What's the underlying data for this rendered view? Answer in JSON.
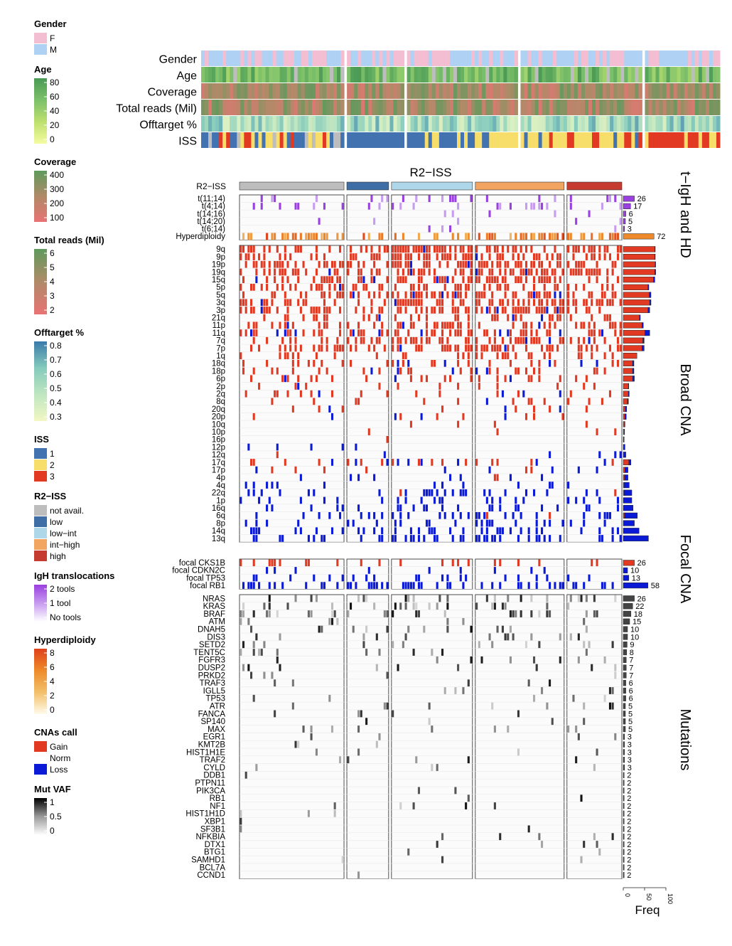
{
  "legends": [
    {
      "title": "Gender",
      "kind": "discrete",
      "items": [
        {
          "label": "F",
          "color": "#f4bed2"
        },
        {
          "label": "M",
          "color": "#aed1f4"
        }
      ]
    },
    {
      "title": "Age",
      "kind": "gradient",
      "colors": [
        "#f4fca0",
        "#bde06e",
        "#7cc06a",
        "#4a9a55"
      ],
      "ticks": [
        "80",
        "60",
        "40",
        "20",
        "0"
      ]
    },
    {
      "title": "Coverage",
      "kind": "gradient",
      "colors": [
        "#e87373",
        "#b08a68",
        "#5f9a5c"
      ],
      "ticks": [
        "400",
        "300",
        "200",
        "100"
      ]
    },
    {
      "title": "Total reads (Mil)",
      "kind": "gradient",
      "colors": [
        "#e87373",
        "#b08a68",
        "#5f9a5c"
      ],
      "ticks": [
        "6",
        "5",
        "4",
        "3",
        "2"
      ]
    },
    {
      "title": "Offtarget %",
      "kind": "gradient",
      "colors": [
        "#f2f7c4",
        "#bfe6c0",
        "#86cbbd",
        "#3a7aaa"
      ],
      "ticks": [
        "0.8",
        "0.7",
        "0.6",
        "0.5",
        "0.4",
        "0.3"
      ]
    },
    {
      "title": "ISS",
      "kind": "discrete",
      "items": [
        {
          "label": "1",
          "color": "#4273b0"
        },
        {
          "label": "2",
          "color": "#f7de6a"
        },
        {
          "label": "3",
          "color": "#e23a22"
        }
      ]
    },
    {
      "title": "R2−ISS",
      "kind": "discrete",
      "items": [
        {
          "label": "not avail.",
          "color": "#bdbdbd"
        },
        {
          "label": "low",
          "color": "#3f6ea6"
        },
        {
          "label": "low−int",
          "color": "#aed7ea"
        },
        {
          "label": "int−high",
          "color": "#f2a560"
        },
        {
          "label": "high",
          "color": "#c63b30"
        }
      ]
    },
    {
      "title": "IgH translocations",
      "kind": "gradient",
      "colors": [
        "#ffffff",
        "#c79bf0",
        "#9a3fe0"
      ],
      "ticks": [
        "2 tools",
        "1 tool",
        "No tools"
      ]
    },
    {
      "title": "Hyperdiploidy",
      "kind": "gradient",
      "colors": [
        "#fffbea",
        "#f3c06a",
        "#ee8a2a",
        "#e0411a"
      ],
      "ticks": [
        "8",
        "6",
        "4",
        "2",
        "0"
      ]
    },
    {
      "title": "CNAs call",
      "kind": "discrete",
      "items": [
        {
          "label": "Gain",
          "color": "#e23a22"
        },
        {
          "label": "Norm",
          "color": "#ffffff"
        },
        {
          "label": "Loss",
          "color": "#0a1ad6"
        }
      ]
    },
    {
      "title": "Mut VAF",
      "kind": "gradient",
      "colors": [
        "#ffffff",
        "#9a9a9a",
        "#000000"
      ],
      "ticks": [
        "1",
        "0.5",
        "0"
      ]
    }
  ],
  "annotation_rows": [
    "Gender",
    "Age",
    "Coverage",
    "Total reads (Mil)",
    "Offtarget %",
    "ISS"
  ],
  "r2iss_title": "R2−ISS",
  "r2iss_row_label": "R2−ISS",
  "groups": [
    {
      "name": "not avail.",
      "n": 40,
      "color": "#bdbdbd"
    },
    {
      "name": "low",
      "n": 16,
      "color": "#3f6ea6"
    },
    {
      "name": "low−int",
      "n": 31,
      "color": "#aed7ea"
    },
    {
      "name": "int−high",
      "n": 34,
      "color": "#f2a560"
    },
    {
      "name": "high",
      "n": 21,
      "color": "#c63b30"
    }
  ],
  "section_titles": [
    "t−IgH and HD",
    "Broad CNA",
    "Focal CNA",
    "Mutations"
  ],
  "freq_axis": {
    "label": "Freq",
    "ticks": [
      "0",
      "50",
      "100"
    ],
    "max": 100
  },
  "chart_data": {
    "type": "heatmap",
    "title": "R2−ISS",
    "xlabel": "Freq",
    "sections": [
      {
        "name": "t−IgH and HD",
        "rows": [
          {
            "label": "t(11;14)",
            "freq": 26,
            "show_count": true
          },
          {
            "label": "t(4;14)",
            "freq": 17,
            "show_count": true
          },
          {
            "label": "t(14;16)",
            "freq": 6,
            "show_count": true
          },
          {
            "label": "t(14;20)",
            "freq": 5,
            "show_count": true
          },
          {
            "label": "t(6;14)",
            "freq": 3,
            "show_count": true
          },
          {
            "label": "Hyperdiploidy",
            "freq": 72,
            "show_count": true
          }
        ]
      },
      {
        "name": "Broad CNA",
        "rows": [
          {
            "label": "9q",
            "gain": 74,
            "loss": 1
          },
          {
            "label": "9p",
            "gain": 74,
            "loss": 1
          },
          {
            "label": "19p",
            "gain": 75,
            "loss": 1
          },
          {
            "label": "19q",
            "gain": 74,
            "loss": 2
          },
          {
            "label": "15q",
            "gain": 71,
            "loss": 3
          },
          {
            "label": "5p",
            "gain": 58,
            "loss": 2
          },
          {
            "label": "5q",
            "gain": 61,
            "loss": 4
          },
          {
            "label": "3q",
            "gain": 62,
            "loss": 3
          },
          {
            "label": "3p",
            "gain": 58,
            "loss": 4
          },
          {
            "label": "21q",
            "gain": 38,
            "loss": 2
          },
          {
            "label": "11p",
            "gain": 44,
            "loss": 3
          },
          {
            "label": "11q",
            "gain": 51,
            "loss": 11
          },
          {
            "label": "7q",
            "gain": 46,
            "loss": 3
          },
          {
            "label": "7p",
            "gain": 44,
            "loss": 5
          },
          {
            "label": "1q",
            "gain": 32,
            "loss": 0
          },
          {
            "label": "18q",
            "gain": 22,
            "loss": 3
          },
          {
            "label": "18p",
            "gain": 22,
            "loss": 3
          },
          {
            "label": "6p",
            "gain": 22,
            "loss": 4
          },
          {
            "label": "2p",
            "gain": 12,
            "loss": 1
          },
          {
            "label": "2q",
            "gain": 12,
            "loss": 2
          },
          {
            "label": "8q",
            "gain": 10,
            "loss": 2
          },
          {
            "label": "20q",
            "gain": 5,
            "loss": 3
          },
          {
            "label": "20p",
            "gain": 4,
            "loss": 3
          },
          {
            "label": "10q",
            "gain": 3,
            "loss": 1
          },
          {
            "label": "10p",
            "gain": 2,
            "loss": 1
          },
          {
            "label": "16p",
            "gain": 1,
            "loss": 1
          },
          {
            "label": "12p",
            "gain": 0,
            "loss": 4
          },
          {
            "label": "12q",
            "gain": 1,
            "loss": 5
          },
          {
            "label": "17q",
            "gain": 13,
            "loss": 5
          },
          {
            "label": "17p",
            "gain": 4,
            "loss": 7
          },
          {
            "label": "4p",
            "gain": 3,
            "loss": 8
          },
          {
            "label": "4q",
            "gain": 2,
            "loss": 12
          },
          {
            "label": "22q",
            "gain": 2,
            "loss": 18
          },
          {
            "label": "1p",
            "gain": 0,
            "loss": 20
          },
          {
            "label": "16q",
            "gain": 1,
            "loss": 22
          },
          {
            "label": "6q",
            "gain": 3,
            "loss": 30
          },
          {
            "label": "8p",
            "gain": 1,
            "loss": 25
          },
          {
            "label": "14q",
            "gain": 0,
            "loss": 37
          },
          {
            "label": "13q",
            "gain": 0,
            "loss": 59
          }
        ]
      },
      {
        "name": "Focal CNA",
        "rows": [
          {
            "label": "focal CKS1B",
            "freq": 26,
            "type": "gain"
          },
          {
            "label": "focal CDKN2C",
            "freq": 10,
            "type": "loss"
          },
          {
            "label": "focal TP53",
            "freq": 13,
            "type": "loss"
          },
          {
            "label": "focal RB1",
            "freq": 58,
            "type": "loss"
          }
        ]
      },
      {
        "name": "Mutations",
        "rows": [
          {
            "label": "NRAS",
            "freq": 26
          },
          {
            "label": "KRAS",
            "freq": 22
          },
          {
            "label": "BRAF",
            "freq": 18
          },
          {
            "label": "ATM",
            "freq": 15
          },
          {
            "label": "DNAH5",
            "freq": 10
          },
          {
            "label": "DIS3",
            "freq": 10
          },
          {
            "label": "SETD2",
            "freq": 9
          },
          {
            "label": "TENT5C",
            "freq": 8
          },
          {
            "label": "FGFR3",
            "freq": 7
          },
          {
            "label": "DUSP2",
            "freq": 7
          },
          {
            "label": "PRKD2",
            "freq": 7
          },
          {
            "label": "TRAF3",
            "freq": 6
          },
          {
            "label": "IGLL5",
            "freq": 6
          },
          {
            "label": "TP53",
            "freq": 6
          },
          {
            "label": "ATR",
            "freq": 5
          },
          {
            "label": "FANCA",
            "freq": 5
          },
          {
            "label": "SP140",
            "freq": 5
          },
          {
            "label": "MAX",
            "freq": 5
          },
          {
            "label": "EGR1",
            "freq": 3
          },
          {
            "label": "KMT2B",
            "freq": 3
          },
          {
            "label": "HIST1H1E",
            "freq": 3
          },
          {
            "label": "TRAF2",
            "freq": 3
          },
          {
            "label": "CYLD",
            "freq": 3
          },
          {
            "label": "DDB1",
            "freq": 2
          },
          {
            "label": "PTPN11",
            "freq": 2
          },
          {
            "label": "PIK3CA",
            "freq": 2
          },
          {
            "label": "RB1",
            "freq": 2
          },
          {
            "label": "NF1",
            "freq": 2
          },
          {
            "label": "HIST1H1D",
            "freq": 2
          },
          {
            "label": "XBP1",
            "freq": 2
          },
          {
            "label": "SF3B1",
            "freq": 2
          },
          {
            "label": "NFKBIA",
            "freq": 2
          },
          {
            "label": "DTX1",
            "freq": 2
          },
          {
            "label": "BTG1",
            "freq": 2
          },
          {
            "label": "SAMHD1",
            "freq": 2
          },
          {
            "label": "BCL7A",
            "freq": 2
          },
          {
            "label": "CCND1",
            "freq": 2
          }
        ]
      }
    ]
  }
}
